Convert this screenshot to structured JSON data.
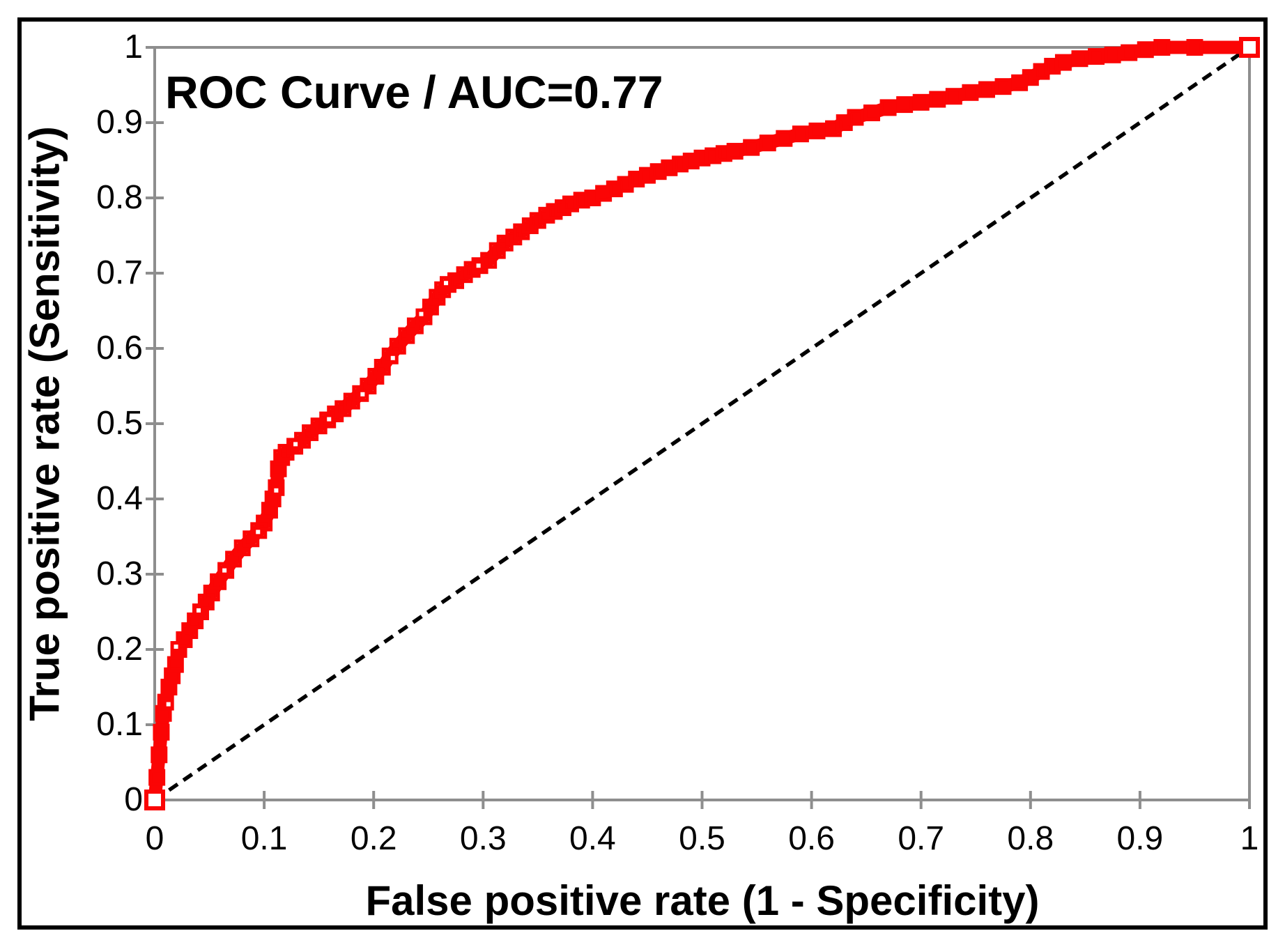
{
  "figure": {
    "background_color": "#ffffff",
    "border_color": "#000000",
    "axis_color": "#8e8e8e",
    "text_color": "#000000"
  },
  "chart_data": {
    "type": "line",
    "title": "ROC Curve / AUC=0.77",
    "xlabel": "False positive rate (1 - Specificity)",
    "ylabel": "True positive rate (Sensitivity)",
    "auc": 0.77,
    "xlim": [
      0,
      1
    ],
    "ylim": [
      0,
      1
    ],
    "grid": false,
    "legend": "none",
    "x_ticks": {
      "values": [
        0,
        0.1,
        0.2,
        0.3,
        0.4,
        0.5,
        0.6,
        0.7,
        0.8,
        0.9,
        1
      ],
      "labels": [
        "0",
        "0.1",
        "0.2",
        "0.3",
        "0.4",
        "0.5",
        "0.6",
        "0.7",
        "0.8",
        "0.9",
        "1"
      ]
    },
    "y_ticks": {
      "values": [
        0,
        0.1,
        0.2,
        0.3,
        0.4,
        0.5,
        0.6,
        0.7,
        0.8,
        0.9,
        1
      ],
      "labels": [
        "0",
        "0.1",
        "0.2",
        "0.3",
        "0.4",
        "0.5",
        "0.6",
        "0.7",
        "0.8",
        "0.9",
        "1"
      ]
    },
    "series": [
      {
        "name": "ROC curve",
        "style": "thick-line-open-square-markers",
        "color": "#fb0505",
        "points": [
          [
            0,
            0
          ],
          [
            0.002,
            0.03
          ],
          [
            0.004,
            0.06
          ],
          [
            0.006,
            0.09
          ],
          [
            0.008,
            0.115
          ],
          [
            0.01,
            0.13
          ],
          [
            0.013,
            0.15
          ],
          [
            0.016,
            0.165
          ],
          [
            0.019,
            0.18
          ],
          [
            0.022,
            0.2
          ],
          [
            0.027,
            0.213
          ],
          [
            0.032,
            0.225
          ],
          [
            0.037,
            0.238
          ],
          [
            0.042,
            0.25
          ],
          [
            0.047,
            0.263
          ],
          [
            0.052,
            0.275
          ],
          [
            0.058,
            0.29
          ],
          [
            0.065,
            0.305
          ],
          [
            0.072,
            0.32
          ],
          [
            0.08,
            0.335
          ],
          [
            0.088,
            0.347
          ],
          [
            0.095,
            0.358
          ],
          [
            0.1,
            0.368
          ],
          [
            0.105,
            0.385
          ],
          [
            0.108,
            0.4
          ],
          [
            0.111,
            0.415
          ],
          [
            0.113,
            0.44
          ],
          [
            0.116,
            0.455
          ],
          [
            0.12,
            0.462
          ],
          [
            0.128,
            0.47
          ],
          [
            0.135,
            0.478
          ],
          [
            0.142,
            0.488
          ],
          [
            0.15,
            0.497
          ],
          [
            0.158,
            0.505
          ],
          [
            0.165,
            0.513
          ],
          [
            0.172,
            0.52
          ],
          [
            0.18,
            0.53
          ],
          [
            0.188,
            0.54
          ],
          [
            0.195,
            0.55
          ],
          [
            0.202,
            0.563
          ],
          [
            0.208,
            0.575
          ],
          [
            0.215,
            0.59
          ],
          [
            0.222,
            0.603
          ],
          [
            0.23,
            0.617
          ],
          [
            0.238,
            0.63
          ],
          [
            0.246,
            0.642
          ],
          [
            0.252,
            0.655
          ],
          [
            0.258,
            0.668
          ],
          [
            0.263,
            0.678
          ],
          [
            0.268,
            0.685
          ],
          [
            0.275,
            0.69
          ],
          [
            0.283,
            0.698
          ],
          [
            0.29,
            0.705
          ],
          [
            0.297,
            0.71
          ],
          [
            0.305,
            0.717
          ],
          [
            0.313,
            0.73
          ],
          [
            0.32,
            0.74
          ],
          [
            0.328,
            0.748
          ],
          [
            0.335,
            0.755
          ],
          [
            0.343,
            0.763
          ],
          [
            0.35,
            0.77
          ],
          [
            0.358,
            0.777
          ],
          [
            0.365,
            0.782
          ],
          [
            0.373,
            0.787
          ],
          [
            0.38,
            0.792
          ],
          [
            0.39,
            0.797
          ],
          [
            0.4,
            0.8
          ],
          [
            0.41,
            0.806
          ],
          [
            0.42,
            0.812
          ],
          [
            0.43,
            0.818
          ],
          [
            0.44,
            0.825
          ],
          [
            0.45,
            0.83
          ],
          [
            0.46,
            0.835
          ],
          [
            0.47,
            0.84
          ],
          [
            0.48,
            0.845
          ],
          [
            0.49,
            0.849
          ],
          [
            0.5,
            0.853
          ],
          [
            0.51,
            0.856
          ],
          [
            0.52,
            0.859
          ],
          [
            0.53,
            0.862
          ],
          [
            0.545,
            0.867
          ],
          [
            0.56,
            0.873
          ],
          [
            0.575,
            0.879
          ],
          [
            0.59,
            0.885
          ],
          [
            0.605,
            0.889
          ],
          [
            0.62,
            0.892
          ],
          [
            0.63,
            0.9
          ],
          [
            0.64,
            0.907
          ],
          [
            0.655,
            0.913
          ],
          [
            0.67,
            0.92
          ],
          [
            0.685,
            0.924
          ],
          [
            0.7,
            0.927
          ],
          [
            0.715,
            0.931
          ],
          [
            0.73,
            0.935
          ],
          [
            0.745,
            0.94
          ],
          [
            0.76,
            0.944
          ],
          [
            0.775,
            0.948
          ],
          [
            0.79,
            0.953
          ],
          [
            0.8,
            0.96
          ],
          [
            0.81,
            0.968
          ],
          [
            0.82,
            0.975
          ],
          [
            0.83,
            0.98
          ],
          [
            0.845,
            0.985
          ],
          [
            0.86,
            0.988
          ],
          [
            0.875,
            0.99
          ],
          [
            0.89,
            0.993
          ],
          [
            0.905,
            0.997
          ],
          [
            0.92,
            1
          ],
          [
            0.95,
            1
          ],
          [
            1,
            1
          ]
        ]
      },
      {
        "name": "Chance diagonal",
        "style": "dashed-line",
        "color": "#000000",
        "points": [
          [
            0,
            0
          ],
          [
            1,
            1
          ]
        ]
      }
    ]
  }
}
